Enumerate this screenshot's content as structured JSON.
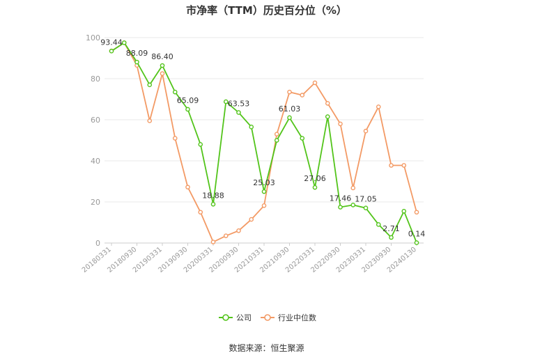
{
  "title": "市净率（TTM）历史百分位（%）",
  "source": "数据来源：恒生聚源",
  "chart_data": {
    "type": "line",
    "title": "市净率（TTM）历史百分位（%）",
    "ylim": [
      0,
      100
    ],
    "yticks": [
      0,
      20,
      40,
      60,
      80,
      100
    ],
    "grid": true,
    "legend_position": "bottom",
    "x": [
      "20180331",
      "20180630",
      "20180930",
      "20181231",
      "20190331",
      "20190630",
      "20190930",
      "20191231",
      "20200331",
      "20200630",
      "20200930",
      "20201231",
      "20210331",
      "20210630",
      "20210930",
      "20211231",
      "20220331",
      "20220630",
      "20220930",
      "20221231",
      "20230331",
      "20230630",
      "20230930",
      "20231231",
      "20240130"
    ],
    "x_tick_labels": [
      "20180331",
      "20180930",
      "20190331",
      "20190930",
      "20200331",
      "20200930",
      "20210331",
      "20210930",
      "20220331",
      "20220930",
      "20230331",
      "20230930",
      "20240130"
    ],
    "series": [
      {
        "name": "公司",
        "color": "#52c41a",
        "values": [
          93.44,
          97.5,
          88.09,
          77,
          86.4,
          73.5,
          65.09,
          48,
          18.88,
          68.8,
          63.53,
          56.5,
          25.03,
          50,
          61.03,
          51,
          27.06,
          61.5,
          17.46,
          18.5,
          17.05,
          9,
          2.71,
          15.5,
          0.14
        ],
        "labels": {
          "0": "93.44",
          "2": "88.09",
          "4": "86.40",
          "6": "65.09",
          "8": "18.88",
          "10": "63.53",
          "12": "25.03",
          "14": "61.03",
          "16": "27.06",
          "18": "17.46",
          "20": "17.05",
          "22": "2.71",
          "24": "0.14"
        }
      },
      {
        "name": "行业中位数",
        "color": "#f39a65",
        "values": [
          93.5,
          97.5,
          86.5,
          59.5,
          82.5,
          51,
          27.2,
          15,
          0.5,
          3.5,
          6,
          11.5,
          18.2,
          53,
          73.5,
          72,
          78,
          68,
          58,
          26.8,
          54.5,
          66.3,
          37.8,
          37.8,
          15
        ]
      }
    ]
  }
}
